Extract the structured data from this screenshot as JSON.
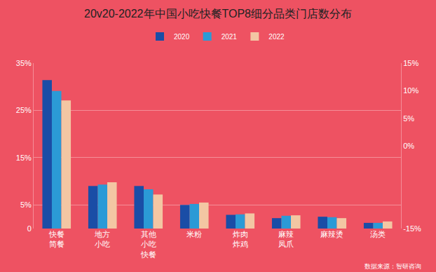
{
  "chart_data": {
    "type": "bar",
    "title": "20v20-2022年中国小吃快餐TOP8细分品类门店数分布",
    "categories": [
      "快餐简餐",
      "地方小吃",
      "其他小吃快餐",
      "米粉",
      "炸肉炸鸡",
      "麻辣凤爪",
      "麻辣烫",
      "汤类"
    ],
    "series": [
      {
        "name": "2020",
        "color": "#1a4da6",
        "values": [
          31.4,
          9.0,
          9.0,
          5.0,
          2.9,
          2.2,
          2.5,
          1.2
        ]
      },
      {
        "name": "2021",
        "color": "#2b9ad6",
        "values": [
          29.1,
          9.3,
          8.3,
          5.2,
          3.0,
          2.7,
          2.4,
          1.2
        ]
      },
      {
        "name": "2022",
        "color": "#f3c6a3",
        "values": [
          27.1,
          9.8,
          7.2,
          5.5,
          3.2,
          2.8,
          2.2,
          1.5
        ]
      }
    ],
    "ylim": [
      0,
      35
    ],
    "yticks": [
      0,
      {
        "value": 5,
        "label": "5%"
      },
      {
        "value": 15,
        "label": "15%"
      },
      {
        "value": 25,
        "label": "25%"
      },
      {
        "value": 35,
        "label": "35%"
      }
    ],
    "y2lim": [
      -15,
      15
    ],
    "y2ticks": [
      {
        "value": -15,
        "label": "-15%"
      },
      {
        "value": 0,
        "label": "0%"
      },
      {
        "value": 5,
        "label": "5%"
      },
      {
        "value": 10,
        "label": "10%"
      },
      {
        "value": 15,
        "label": "15%"
      }
    ],
    "grid": true,
    "legend": "top",
    "annotations": [
      "数据来源：智研咨询"
    ]
  }
}
